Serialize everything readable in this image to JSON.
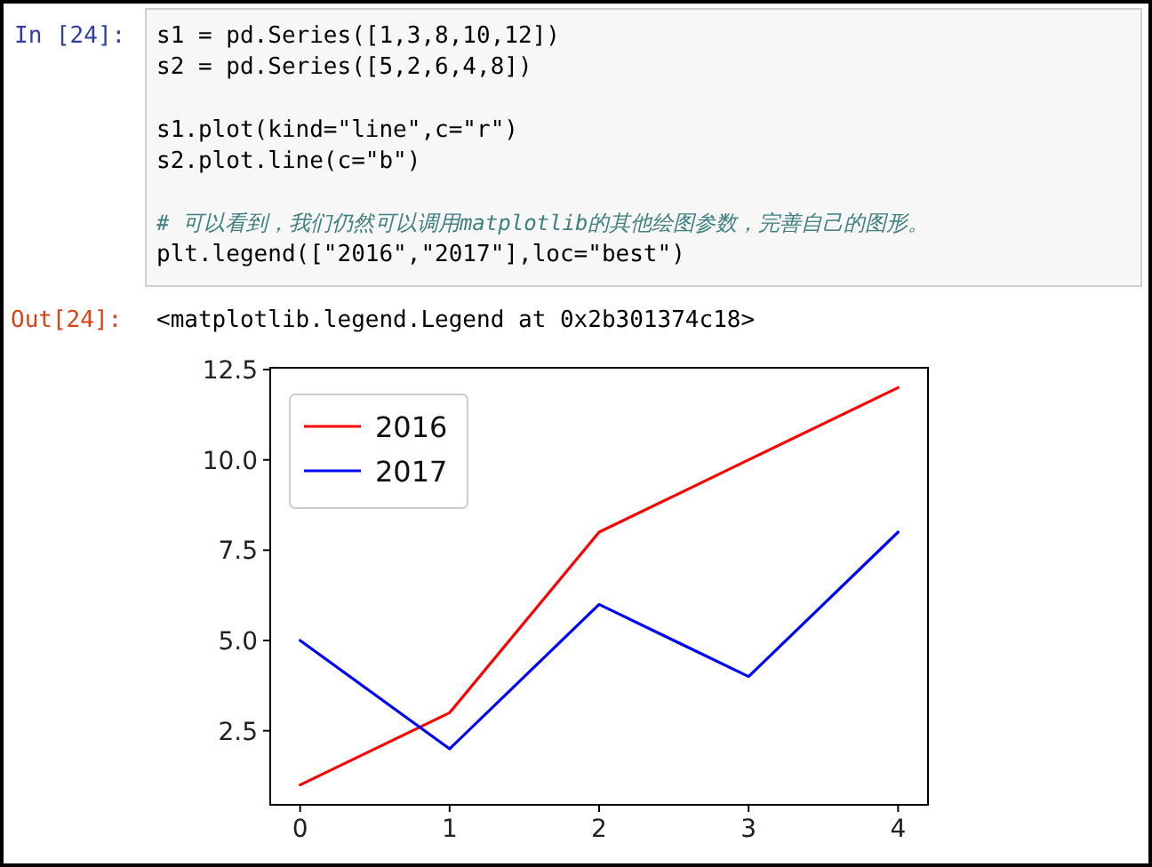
{
  "chart_data": {
    "type": "line",
    "x": [
      0,
      1,
      2,
      3,
      4
    ],
    "series": [
      {
        "name": "2016",
        "color": "#ff0000",
        "values": [
          1,
          3,
          8,
          10,
          12
        ]
      },
      {
        "name": "2017",
        "color": "#0000ff",
        "values": [
          5,
          2,
          6,
          4,
          8
        ]
      }
    ],
    "xlim": [
      -0.2,
      4.2
    ],
    "ylim": [
      0.45,
      12.55
    ],
    "xticks": [
      0,
      1,
      2,
      3,
      4
    ],
    "yticks": [
      {
        "value": 2.5,
        "label": "2.5"
      },
      {
        "value": 5,
        "label": "5.0"
      },
      {
        "value": 7.5,
        "label": "7.5"
      },
      {
        "value": 10,
        "label": "10.0"
      },
      {
        "value": 12.5,
        "label": "12.5"
      }
    ],
    "legend": "top left",
    "line_style": "solid",
    "annotations": [
      "In [24]:",
      "s1 = pd.Series([1,3,8,10,12])",
      "s2 = pd.Series([5,2,6,4,8])",
      "s1.plot(kind=\"line\",c=\"r\")",
      "s2.plot.line(c=\"b\")",
      "# 可以看到，我们仍然可以调用matplotlib的其他绘图参数，完善自己的图形。",
      "plt.legend([\"2016\",\"2017\"],loc=\"best\")",
      "Out[24]:",
      "<matplotlib.legend.Legend at 0x2b301374c18>"
    ]
  }
}
